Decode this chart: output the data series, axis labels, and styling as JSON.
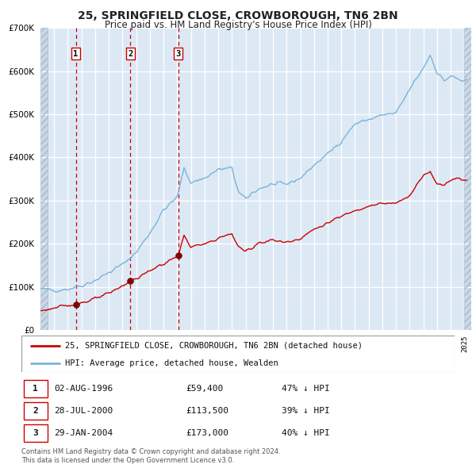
{
  "title": "25, SPRINGFIELD CLOSE, CROWBOROUGH, TN6 2BN",
  "subtitle": "Price paid vs. HM Land Registry's House Price Index (HPI)",
  "legend_line1": "25, SPRINGFIELD CLOSE, CROWBOROUGH, TN6 2BN (detached house)",
  "legend_line2": "HPI: Average price, detached house, Wealden",
  "footnote": "Contains HM Land Registry data © Crown copyright and database right 2024.\nThis data is licensed under the Open Government Licence v3.0.",
  "transactions": [
    {
      "num": 1,
      "date": "02-AUG-1996",
      "price": 59400,
      "note": "47% ↓ HPI",
      "x_year": 1996.585
    },
    {
      "num": 2,
      "date": "28-JUL-2000",
      "price": 113500,
      "note": "39% ↓ HPI",
      "x_year": 2000.572
    },
    {
      "num": 3,
      "date": "29-JAN-2004",
      "price": 173000,
      "note": "40% ↓ HPI",
      "x_year": 2004.079
    }
  ],
  "hpi_color": "#7ab4d8",
  "price_color": "#cc0000",
  "vline_color": "#cc0000",
  "plot_bg": "#dce9f5",
  "ylim": [
    0,
    700000
  ],
  "xlim_start": 1994.0,
  "xlim_end": 2025.5,
  "hpi_anchors": [
    [
      1994.0,
      95000
    ],
    [
      1995.0,
      92000
    ],
    [
      1996.0,
      95000
    ],
    [
      1997.0,
      103000
    ],
    [
      1998.0,
      115000
    ],
    [
      1999.0,
      133000
    ],
    [
      2000.0,
      152000
    ],
    [
      2001.0,
      180000
    ],
    [
      2002.0,
      225000
    ],
    [
      2003.0,
      278000
    ],
    [
      2004.0,
      308000
    ],
    [
      2004.5,
      375000
    ],
    [
      2005.0,
      342000
    ],
    [
      2006.0,
      352000
    ],
    [
      2007.0,
      372000
    ],
    [
      2008.0,
      375000
    ],
    [
      2008.5,
      318000
    ],
    [
      2009.0,
      303000
    ],
    [
      2009.5,
      318000
    ],
    [
      2010.0,
      328000
    ],
    [
      2011.0,
      338000
    ],
    [
      2012.0,
      338000
    ],
    [
      2013.0,
      352000
    ],
    [
      2014.0,
      382000
    ],
    [
      2015.0,
      408000
    ],
    [
      2016.0,
      438000
    ],
    [
      2017.0,
      478000
    ],
    [
      2018.0,
      488000
    ],
    [
      2019.0,
      498000
    ],
    [
      2020.0,
      502000
    ],
    [
      2021.0,
      558000
    ],
    [
      2022.0,
      608000
    ],
    [
      2022.5,
      638000
    ],
    [
      2023.0,
      598000
    ],
    [
      2023.5,
      578000
    ],
    [
      2024.0,
      588000
    ],
    [
      2024.5,
      582000
    ],
    [
      2025.0,
      575000
    ]
  ],
  "prop_anchors": [
    [
      1994.0,
      45000
    ],
    [
      1996.585,
      59400
    ],
    [
      1997.0,
      63000
    ],
    [
      1998.0,
      72000
    ],
    [
      1999.0,
      84000
    ],
    [
      2000.572,
      113500
    ],
    [
      2001.0,
      118000
    ],
    [
      2002.0,
      138000
    ],
    [
      2003.0,
      153000
    ],
    [
      2004.079,
      173000
    ],
    [
      2004.5,
      218000
    ],
    [
      2005.0,
      193000
    ],
    [
      2006.0,
      198000
    ],
    [
      2007.0,
      213000
    ],
    [
      2008.0,
      223000
    ],
    [
      2008.5,
      192000
    ],
    [
      2009.0,
      182000
    ],
    [
      2009.5,
      192000
    ],
    [
      2010.0,
      203000
    ],
    [
      2011.0,
      208000
    ],
    [
      2012.0,
      203000
    ],
    [
      2013.0,
      213000
    ],
    [
      2014.0,
      233000
    ],
    [
      2015.0,
      248000
    ],
    [
      2016.0,
      263000
    ],
    [
      2017.0,
      278000
    ],
    [
      2018.0,
      288000
    ],
    [
      2019.0,
      293000
    ],
    [
      2020.0,
      293000
    ],
    [
      2021.0,
      313000
    ],
    [
      2022.0,
      358000
    ],
    [
      2022.5,
      368000
    ],
    [
      2023.0,
      338000
    ],
    [
      2023.5,
      338000
    ],
    [
      2024.0,
      348000
    ],
    [
      2024.5,
      352000
    ],
    [
      2025.0,
      348000
    ]
  ]
}
